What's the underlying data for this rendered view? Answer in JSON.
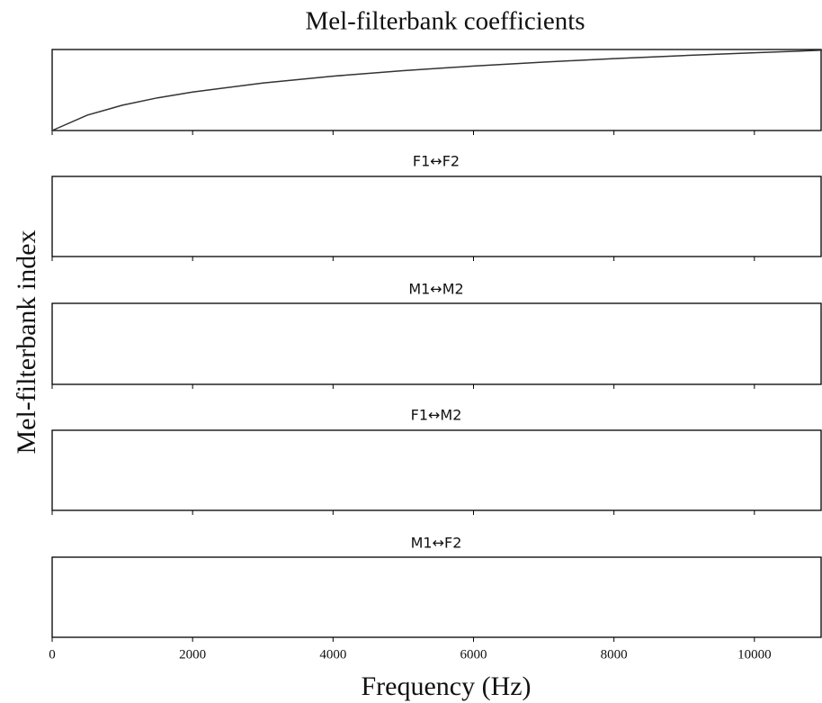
{
  "x_label": "Frequency (Hz)",
  "y_label": "Mel-filterbank index",
  "chart_data": [
    {
      "type": "line",
      "title": "Mel-filterbank coefficients",
      "color": "#333333",
      "x": [
        0,
        500,
        1000,
        1500,
        2000,
        3000,
        4000,
        5000,
        6000,
        7000,
        8000,
        9000,
        10000,
        11000
      ],
      "values": [
        0,
        607,
        1000,
        1291,
        1521,
        1876,
        2146,
        2364,
        2546,
        2702,
        2840,
        2963,
        3073,
        3174
      ],
      "xlim": [
        0,
        10950
      ],
      "ylim": [
        0,
        3200
      ],
      "xticks": [
        0,
        2000,
        4000,
        6000,
        8000,
        10000
      ]
    },
    {
      "type": "heatmap",
      "title": "F1↔F2",
      "xlim": [
        0,
        10950
      ],
      "xticks": [
        0,
        2000,
        4000,
        6000,
        8000,
        10000
      ]
    },
    {
      "type": "heatmap",
      "title": "M1↔M2",
      "xlim": [
        0,
        10950
      ],
      "xticks": [
        0,
        2000,
        4000,
        6000,
        8000,
        10000
      ]
    },
    {
      "type": "heatmap",
      "title": "F1↔M2",
      "xlim": [
        0,
        10950
      ],
      "xticks": [
        0,
        2000,
        4000,
        6000,
        8000,
        10000
      ]
    },
    {
      "type": "heatmap",
      "title": "M1↔F2",
      "xlim": [
        0,
        10950
      ],
      "xticks": [
        0,
        2000,
        4000,
        6000,
        8000,
        10000
      ]
    }
  ]
}
